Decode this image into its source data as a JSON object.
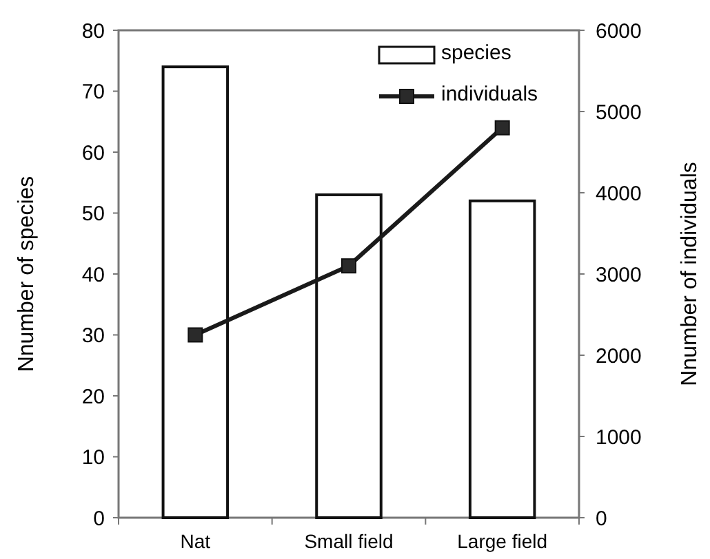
{
  "chart_data": {
    "type": "bar",
    "categories": [
      "Nat",
      "Small field",
      "Large field"
    ],
    "ylabel": "Nnumber of species",
    "y2label": "Nnumber of individuals",
    "series": [
      {
        "name": "species",
        "color": "#ffffff",
        "values": [
          74,
          53,
          52
        ]
      },
      {
        "name": "individuals",
        "type": "line",
        "axis": "y2",
        "color": "#1a1a1a",
        "values": [
          2250,
          3100,
          4800
        ]
      }
    ],
    "ylim": [
      0,
      80
    ],
    "yticks": [
      0,
      10,
      20,
      30,
      40,
      50,
      60,
      70,
      80
    ],
    "y2lim": [
      0,
      6000
    ],
    "y2ticks": [
      0,
      1000,
      2000,
      3000,
      4000,
      5000,
      6000
    ],
    "marker": "square",
    "legend": "top right"
  }
}
